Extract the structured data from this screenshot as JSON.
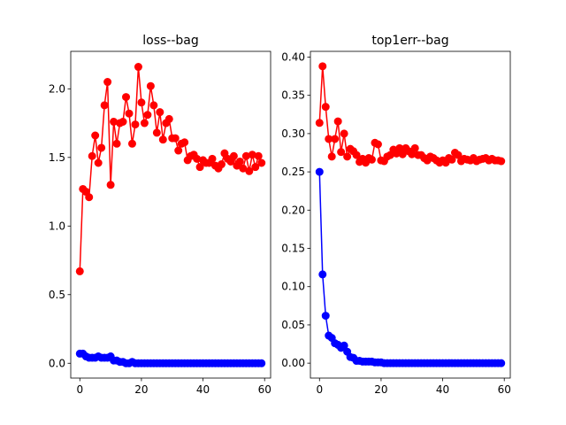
{
  "chart_data": [
    {
      "type": "line",
      "title": "loss--bag",
      "xlabel": "",
      "ylabel": "",
      "xlim": [
        -2.95,
        61.95
      ],
      "ylim": [
        -0.108,
        2.273
      ],
      "xticks": [
        0,
        20,
        40,
        60
      ],
      "xtick_labels": [
        "0",
        "20",
        "40",
        "60"
      ],
      "yticks": [
        0.0,
        0.5,
        1.0,
        1.5,
        2.0
      ],
      "ytick_labels": [
        "0.0",
        "0.5",
        "1.0",
        "1.5",
        "2.0"
      ],
      "grid": false,
      "legend": "none",
      "series": [
        {
          "color": "#ff0000",
          "marker": "circle",
          "x": [
            0,
            1,
            2,
            3,
            4,
            5,
            6,
            7,
            8,
            9,
            10,
            11,
            12,
            13,
            14,
            15,
            16,
            17,
            18,
            19,
            20,
            21,
            22,
            23,
            24,
            25,
            26,
            27,
            28,
            29,
            30,
            31,
            32,
            33,
            34,
            35,
            36,
            37,
            38,
            39,
            40,
            41,
            42,
            43,
            44,
            45,
            46,
            47,
            48,
            49,
            50,
            51,
            52,
            53,
            54,
            55,
            56,
            57,
            58,
            59
          ],
          "y": [
            0.67,
            1.27,
            1.25,
            1.21,
            1.51,
            1.66,
            1.46,
            1.57,
            1.88,
            2.05,
            1.3,
            1.76,
            1.6,
            1.75,
            1.76,
            1.94,
            1.82,
            1.6,
            1.74,
            2.16,
            1.9,
            1.75,
            1.81,
            2.02,
            1.88,
            1.68,
            1.83,
            1.63,
            1.75,
            1.78,
            1.64,
            1.64,
            1.55,
            1.6,
            1.61,
            1.48,
            1.51,
            1.52,
            1.49,
            1.43,
            1.48,
            1.46,
            1.46,
            1.49,
            1.44,
            1.42,
            1.45,
            1.53,
            1.49,
            1.47,
            1.51,
            1.44,
            1.47,
            1.42,
            1.51,
            1.4,
            1.52,
            1.43,
            1.51,
            1.46
          ]
        },
        {
          "color": "#0000ff",
          "marker": "circle",
          "x": [
            0,
            1,
            2,
            3,
            4,
            5,
            6,
            7,
            8,
            9,
            10,
            11,
            12,
            13,
            14,
            15,
            16,
            17,
            18,
            19,
            20,
            21,
            22,
            23,
            24,
            25,
            26,
            27,
            28,
            29,
            30,
            31,
            32,
            33,
            34,
            35,
            36,
            37,
            38,
            39,
            40,
            41,
            42,
            43,
            44,
            45,
            46,
            47,
            48,
            49,
            50,
            51,
            52,
            53,
            54,
            55,
            56,
            57,
            58,
            59
          ],
          "y": [
            0.07,
            0.07,
            0.05,
            0.04,
            0.04,
            0.04,
            0.05,
            0.04,
            0.04,
            0.04,
            0.05,
            0.02,
            0.02,
            0.01,
            0.01,
            0.0,
            0.0,
            0.01,
            0.0,
            0.0,
            0.0,
            0.0,
            0.0,
            0.0,
            0.0,
            0.0,
            0.0,
            0.0,
            0.0,
            0.0,
            0.0,
            0.0,
            0.0,
            0.0,
            0.0,
            0.0,
            0.0,
            0.0,
            0.0,
            0.0,
            0.0,
            0.0,
            0.0,
            0.0,
            0.0,
            0.0,
            0.0,
            0.0,
            0.0,
            0.0,
            0.0,
            0.0,
            0.0,
            0.0,
            0.0,
            0.0,
            0.0,
            0.0,
            0.0,
            0.0
          ]
        }
      ]
    },
    {
      "type": "line",
      "title": "top1err--bag",
      "xlabel": "",
      "ylabel": "",
      "xlim": [
        -2.95,
        61.95
      ],
      "ylim": [
        -0.0195,
        0.4075
      ],
      "xticks": [
        0,
        20,
        40,
        60
      ],
      "xtick_labels": [
        "0",
        "20",
        "40",
        "60"
      ],
      "yticks": [
        0.0,
        0.05,
        0.1,
        0.15,
        0.2,
        0.25,
        0.3,
        0.35,
        0.4
      ],
      "ytick_labels": [
        "0.00",
        "0.05",
        "0.10",
        "0.15",
        "0.20",
        "0.25",
        "0.30",
        "0.35",
        "0.40"
      ],
      "grid": false,
      "legend": "none",
      "series": [
        {
          "color": "#ff0000",
          "marker": "circle",
          "x": [
            0,
            1,
            2,
            3,
            4,
            5,
            6,
            7,
            8,
            9,
            10,
            11,
            12,
            13,
            14,
            15,
            16,
            17,
            18,
            19,
            20,
            21,
            22,
            23,
            24,
            25,
            26,
            27,
            28,
            29,
            30,
            31,
            32,
            33,
            34,
            35,
            36,
            37,
            38,
            39,
            40,
            41,
            42,
            43,
            44,
            45,
            46,
            47,
            48,
            49,
            50,
            51,
            52,
            53,
            54,
            55,
            56,
            57,
            58,
            59
          ],
          "y": [
            0.314,
            0.388,
            0.335,
            0.293,
            0.27,
            0.293,
            0.316,
            0.276,
            0.3,
            0.27,
            0.28,
            0.277,
            0.272,
            0.263,
            0.267,
            0.262,
            0.268,
            0.266,
            0.288,
            0.286,
            0.265,
            0.264,
            0.27,
            0.272,
            0.279,
            0.274,
            0.281,
            0.273,
            0.281,
            0.277,
            0.273,
            0.281,
            0.272,
            0.272,
            0.268,
            0.265,
            0.27,
            0.268,
            0.265,
            0.262,
            0.265,
            0.262,
            0.268,
            0.266,
            0.275,
            0.272,
            0.264,
            0.267,
            0.266,
            0.265,
            0.268,
            0.264,
            0.266,
            0.267,
            0.268,
            0.265,
            0.267,
            0.265,
            0.265,
            0.264
          ]
        },
        {
          "color": "#0000ff",
          "marker": "circle",
          "x": [
            0,
            1,
            2,
            3,
            4,
            5,
            6,
            7,
            8,
            9,
            10,
            11,
            12,
            13,
            14,
            15,
            16,
            17,
            18,
            19,
            20,
            21,
            22,
            23,
            24,
            25,
            26,
            27,
            28,
            29,
            30,
            31,
            32,
            33,
            34,
            35,
            36,
            37,
            38,
            39,
            40,
            41,
            42,
            43,
            44,
            45,
            46,
            47,
            48,
            49,
            50,
            51,
            52,
            53,
            54,
            55,
            56,
            57,
            58,
            59
          ],
          "y": [
            0.25,
            0.116,
            0.062,
            0.036,
            0.033,
            0.026,
            0.024,
            0.02,
            0.023,
            0.015,
            0.008,
            0.007,
            0.003,
            0.003,
            0.002,
            0.002,
            0.002,
            0.002,
            0.001,
            0.001,
            0.001,
            0.0,
            0.0,
            0.0,
            0.0,
            0.0,
            0.0,
            0.0,
            0.0,
            0.0,
            0.0,
            0.0,
            0.0,
            0.0,
            0.0,
            0.0,
            0.0,
            0.0,
            0.0,
            0.0,
            0.0,
            0.0,
            0.0,
            0.0,
            0.0,
            0.0,
            0.0,
            0.0,
            0.0,
            0.0,
            0.0,
            0.0,
            0.0,
            0.0,
            0.0,
            0.0,
            0.0,
            0.0,
            0.0,
            0.0
          ]
        }
      ]
    }
  ]
}
